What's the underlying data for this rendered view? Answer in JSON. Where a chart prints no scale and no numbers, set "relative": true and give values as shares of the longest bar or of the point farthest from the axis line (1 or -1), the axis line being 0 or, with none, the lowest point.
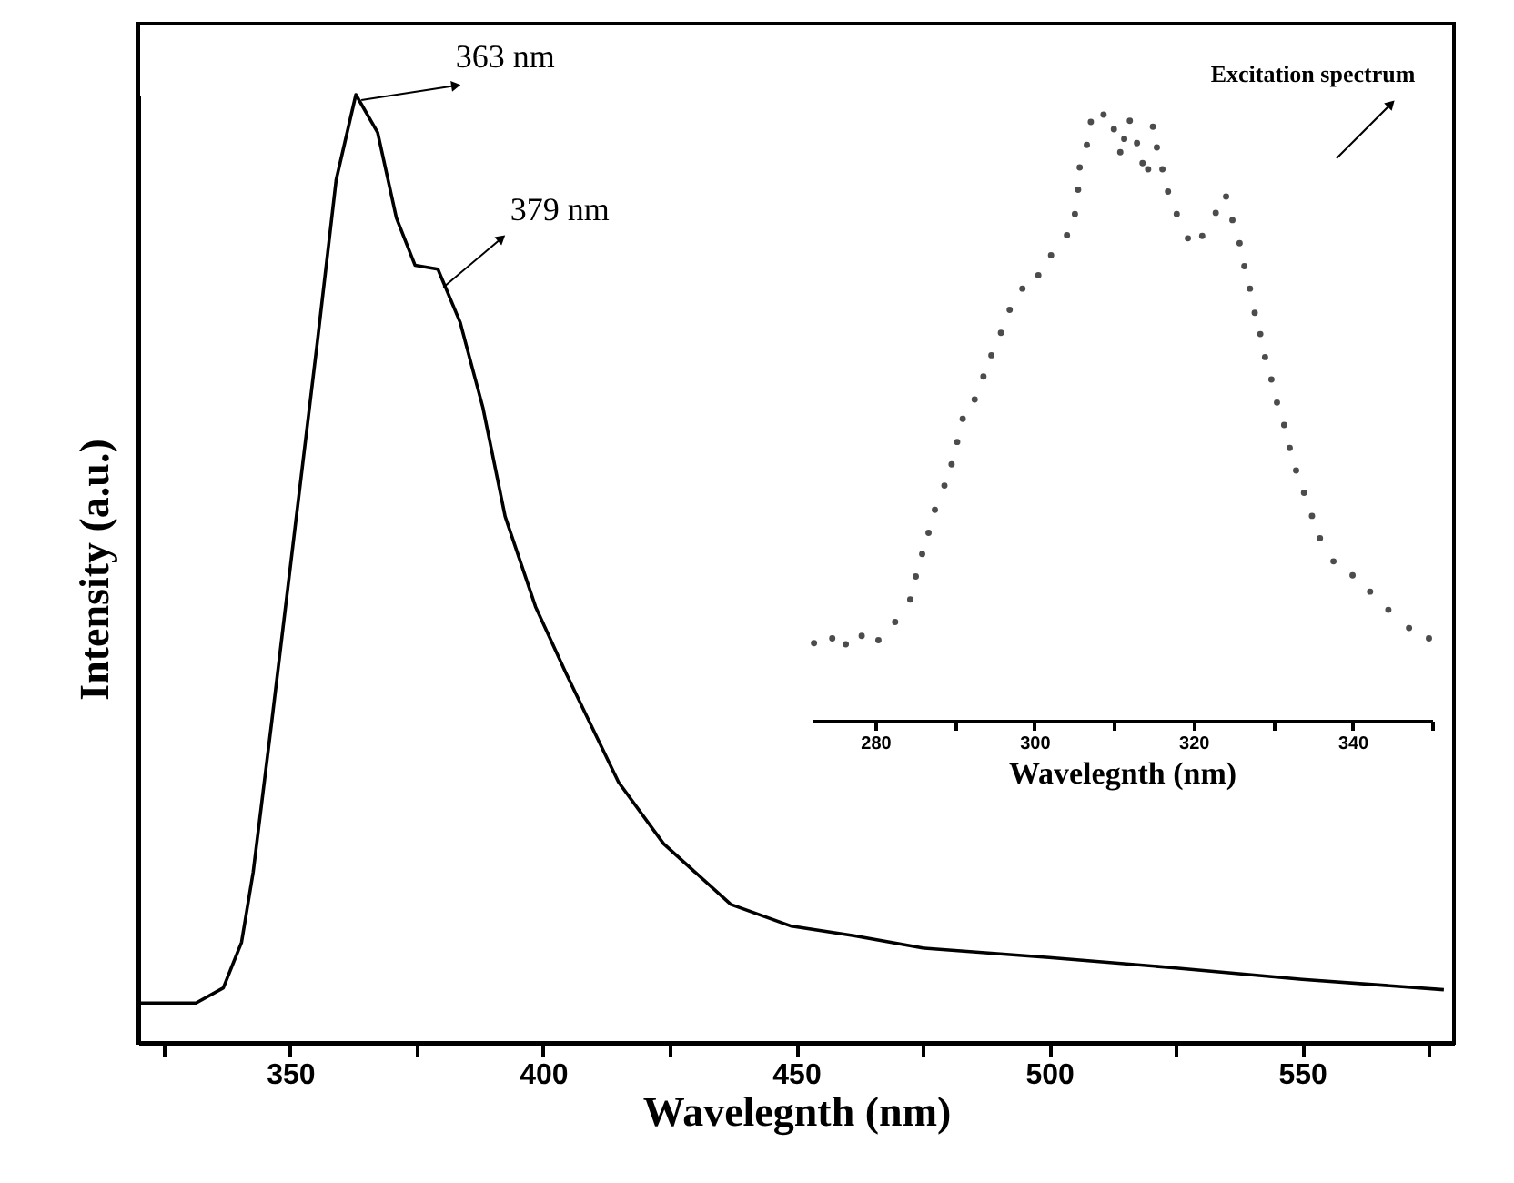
{
  "chart_data": [
    {
      "type": "line",
      "xlabel": "Wavelegnth (nm)",
      "ylabel": "Intensity (a.u.)",
      "relative": true,
      "xlim": [
        320,
        580
      ],
      "xticks": [
        {
          "value": 325,
          "label": null
        },
        350,
        {
          "value": 375,
          "label": null
        },
        400,
        {
          "value": 425,
          "label": null
        },
        450,
        {
          "value": 475,
          "label": null
        },
        500,
        {
          "value": 525,
          "label": null
        },
        550,
        {
          "value": 575,
          "label": null
        }
      ],
      "x": [
        320,
        331.4,
        336.8,
        340.4,
        342.7,
        346.4,
        350.9,
        355.4,
        359.1,
        363,
        367.3,
        371,
        374.7,
        379.2,
        383.6,
        388.1,
        392.5,
        398.5,
        404.5,
        414.9,
        423.8,
        437.1,
        449.1,
        461.4,
        475,
        500,
        525,
        550,
        578
      ],
      "series": [
        {
          "color": "#000000",
          "values": [
            0.042,
            0.042,
            0.058,
            0.106,
            0.18,
            0.34,
            0.54,
            0.74,
            0.91,
            1.0,
            0.96,
            0.87,
            0.82,
            0.816,
            0.76,
            0.67,
            0.555,
            0.46,
            0.39,
            0.275,
            0.21,
            0.146,
            0.123,
            0.113,
            0.1,
            0.09,
            0.079,
            0.067,
            0.056
          ]
        }
      ],
      "annotations": [
        {
          "text": "363 nm",
          "x": 363,
          "y": 1.0
        },
        {
          "text": "379 nm",
          "x": 379.2,
          "y": 0.816
        }
      ]
    },
    {
      "type": "scatter",
      "xlabel": "Wavelegnth (nm)",
      "relative": true,
      "marker": "circle",
      "xlim": [
        272,
        350
      ],
      "xticks": [
        280,
        {
          "value": 290,
          "label": null
        },
        300,
        {
          "value": 310,
          "label": null
        },
        320,
        {
          "value": 330,
          "label": null
        },
        340,
        {
          "value": 350,
          "label": null
        }
      ],
      "x": [
        272.3,
        274.6,
        276.3,
        278.3,
        280.4,
        282.5,
        284.4,
        285.1,
        285.9,
        286.7,
        287.5,
        288.7,
        289.6,
        290.3,
        291.0,
        292.5,
        293.6,
        294.6,
        295.8,
        296.9,
        298.5,
        300.5,
        302.1,
        304.1,
        305.1,
        305.5,
        305.7,
        306.6,
        307.1,
        308.7,
        310.0,
        310.8,
        311.3,
        312.0,
        312.9,
        313.6,
        314.3,
        314.9,
        315.4,
        316.1,
        316.8,
        317.9,
        319.3,
        321.1,
        322.8,
        324.1,
        324.9,
        325.8,
        326.4,
        327.1,
        327.7,
        328.4,
        329.0,
        329.8,
        330.5,
        331.4,
        332.1,
        332.9,
        333.9,
        334.9,
        335.9,
        337.6,
        340.0,
        342.2,
        344.5,
        347.1,
        349.6
      ],
      "series": [
        {
          "color": "#000000",
          "values": [
            0.128,
            0.136,
            0.126,
            0.14,
            0.133,
            0.163,
            0.2,
            0.238,
            0.275,
            0.31,
            0.348,
            0.388,
            0.423,
            0.46,
            0.498,
            0.53,
            0.568,
            0.603,
            0.64,
            0.678,
            0.713,
            0.735,
            0.768,
            0.801,
            0.836,
            0.876,
            0.913,
            0.95,
            0.988,
            1.0,
            0.976,
            0.938,
            0.96,
            0.99,
            0.953,
            0.92,
            0.91,
            0.98,
            0.946,
            0.91,
            0.873,
            0.836,
            0.796,
            0.8,
            0.838,
            0.865,
            0.826,
            0.788,
            0.75,
            0.713,
            0.673,
            0.638,
            0.6,
            0.563,
            0.525,
            0.488,
            0.45,
            0.413,
            0.376,
            0.338,
            0.301,
            0.263,
            0.24,
            0.213,
            0.183,
            0.153,
            0.136
          ]
        }
      ],
      "annotations": [
        "Excitation spectrum"
      ]
    }
  ]
}
